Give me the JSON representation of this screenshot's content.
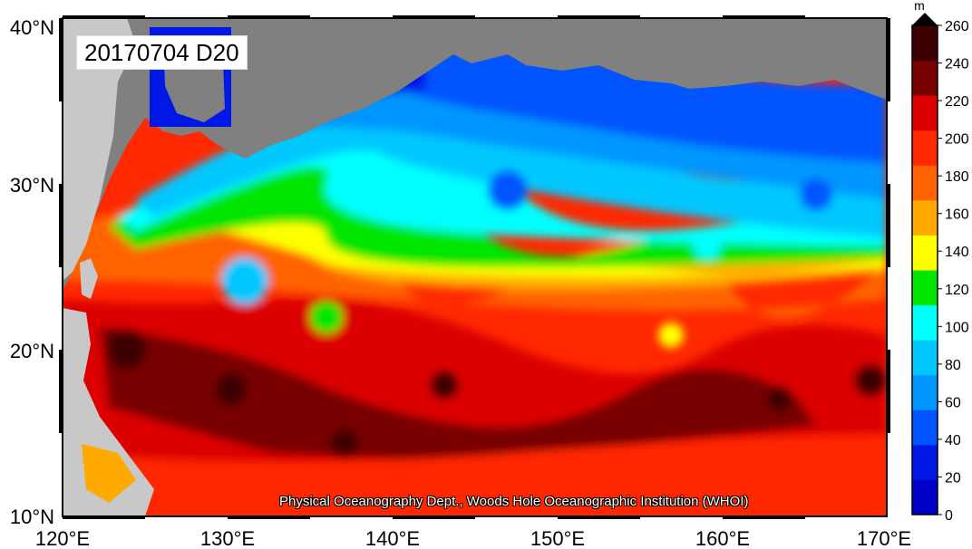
{
  "map": {
    "title": "20170704 D20",
    "credit": "Physical Oceanography Dept., Woods Hole Oceanographic Institution (WHOI)",
    "lon_range": [
      120,
      170
    ],
    "lat_range": [
      10,
      40
    ],
    "x_ticks": [
      "120°E",
      "130°E",
      "140°E",
      "150°E",
      "160°E",
      "170°E"
    ],
    "y_ticks": [
      "10°N",
      "20°N",
      "30°N",
      "40°N"
    ],
    "land_color": "#808080",
    "outside_land_color": "#c8c8c8"
  },
  "colorbar": {
    "unit": "m",
    "ticks": [
      "0",
      "20",
      "40",
      "60",
      "80",
      "100",
      "120",
      "140",
      "160",
      "180",
      "200",
      "220",
      "240",
      "260"
    ],
    "colors": [
      "#0000c8",
      "#0018e6",
      "#0055ff",
      "#0096ff",
      "#00c8ff",
      "#00ffff",
      "#00e600",
      "#ffff00",
      "#ffaa00",
      "#ff6400",
      "#ff2800",
      "#dc0000",
      "#780000",
      "#3c0000"
    ]
  }
}
